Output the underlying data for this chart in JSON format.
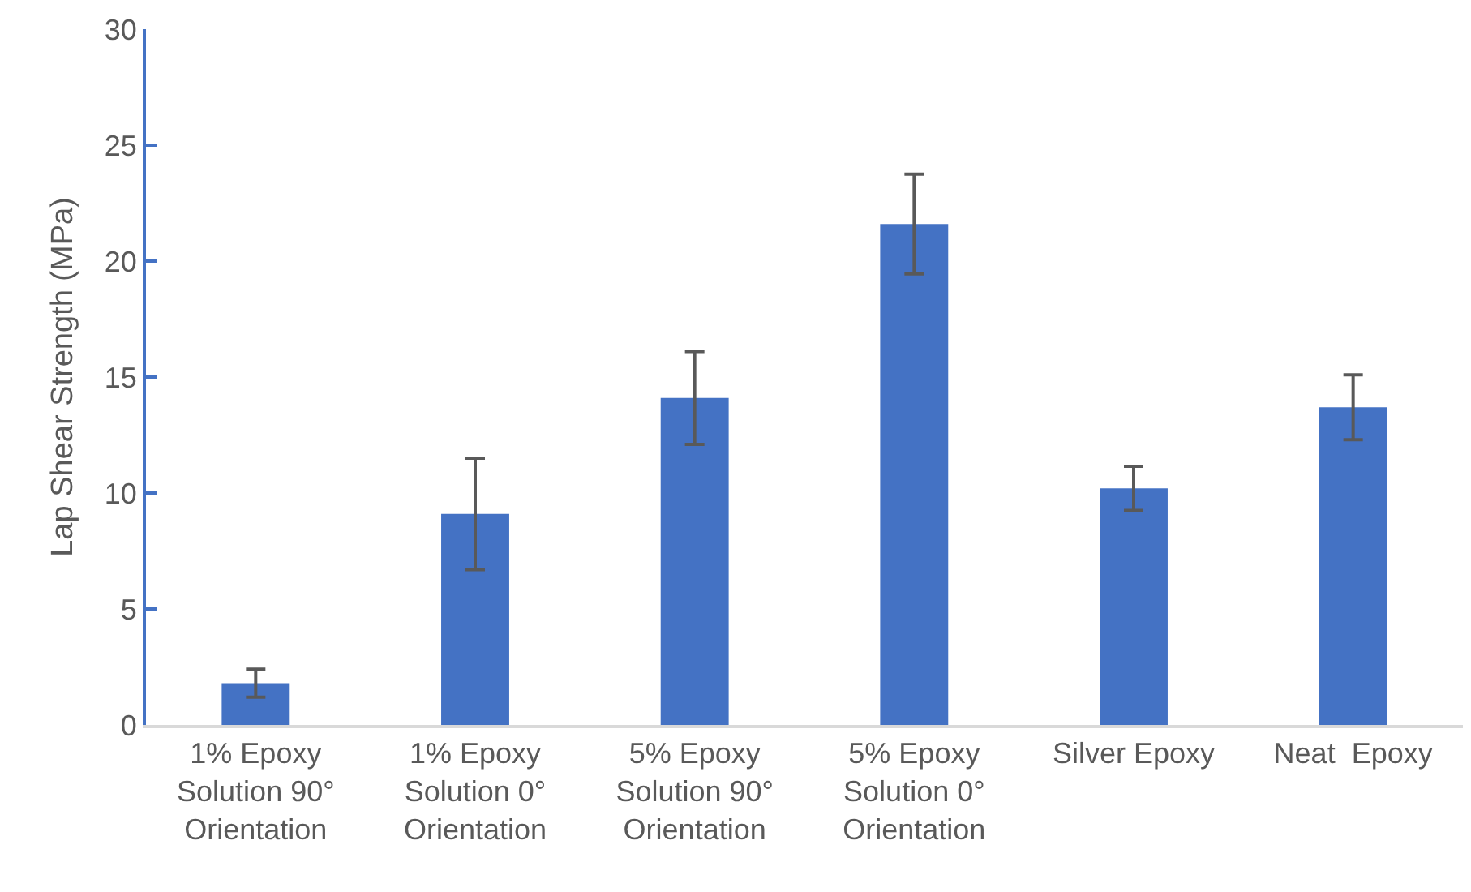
{
  "chart_data": {
    "type": "bar",
    "ylabel": "Lap Shear Strength (MPa)",
    "categories": [
      "1% Epoxy\nSolution 90°\nOrientation",
      "1% Epoxy\nSolution 0°\nOrientation",
      "5% Epoxy\nSolution 90°\nOrientation",
      "5% Epoxy\nSolution 0°\nOrientation",
      "Silver Epoxy",
      "Neat  Epoxy"
    ],
    "values": [
      1.8,
      9.1,
      14.1,
      21.6,
      10.2,
      13.7
    ],
    "errors": [
      0.6,
      2.4,
      2.0,
      2.15,
      0.95,
      1.4
    ],
    "color": "#4472c4",
    "ylim": [
      0,
      30
    ],
    "yticks": [
      0,
      5,
      10,
      15,
      20,
      25,
      30
    ],
    "grid": false,
    "legend": false
  }
}
